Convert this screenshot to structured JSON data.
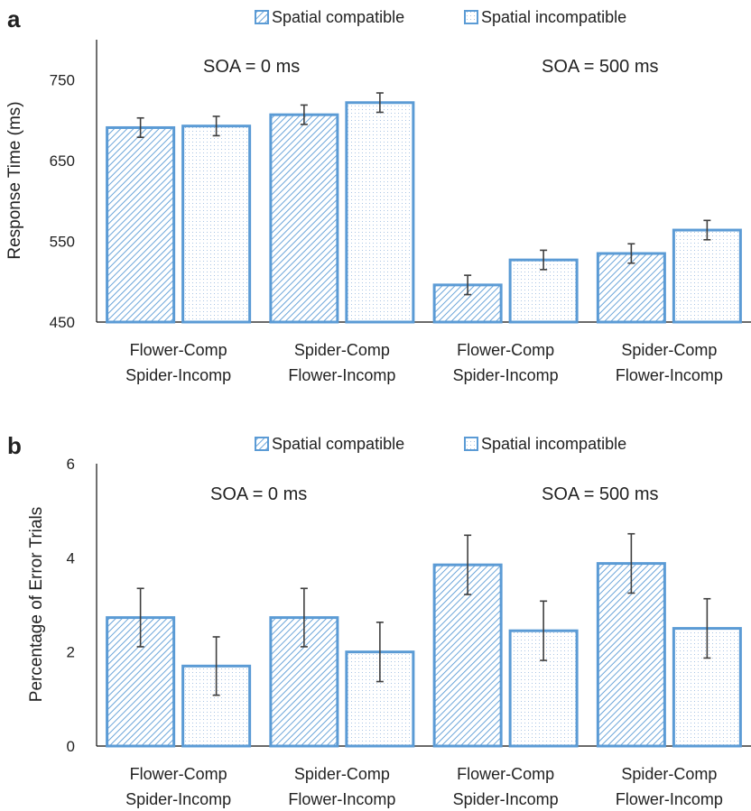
{
  "colors": {
    "bar_edge": "#5b9bd5",
    "hatch_line": "#5b9bd5",
    "dot": "#a9c4e4",
    "text": "#222222",
    "axis": "#111111",
    "error": "#3f3f3f",
    "background": "#ffffff"
  },
  "chart_data": [
    {
      "type": "bar",
      "panel_label": "a",
      "ylabel": "Response Time (ms)",
      "ylim": [
        450,
        800
      ],
      "yticks": [
        450,
        550,
        650,
        750
      ],
      "grid": false,
      "legend_position": "top",
      "annotations": [
        "SOA = 0 ms",
        "SOA = 500 ms"
      ],
      "categories": [
        [
          "Flower-Comp",
          "Spider-Incomp"
        ],
        [
          "Spider-Comp",
          "Flower-Incomp"
        ],
        [
          "Flower-Comp",
          "Spider-Incomp"
        ],
        [
          "Spider-Comp",
          "Flower-Incomp"
        ]
      ],
      "series": [
        {
          "name": "Spatial compatible",
          "pattern": "hatch",
          "values": [
            691,
            707,
            496,
            535
          ],
          "errors": [
            12,
            12,
            12,
            12
          ]
        },
        {
          "name": "Spatial incompatible",
          "pattern": "dots",
          "values": [
            693,
            722,
            527,
            564
          ],
          "errors": [
            12,
            12,
            12,
            12
          ]
        }
      ]
    },
    {
      "type": "bar",
      "panel_label": "b",
      "ylabel": "Percentage of Error Trials",
      "ylim": [
        0,
        6
      ],
      "yticks": [
        0,
        2,
        4,
        6
      ],
      "grid": false,
      "legend_position": "top",
      "annotations": [
        "SOA = 0 ms",
        "SOA = 500 ms"
      ],
      "categories": [
        [
          "Flower-Comp",
          "Spider-Incomp"
        ],
        [
          "Spider-Comp",
          "Flower-Incomp"
        ],
        [
          "Flower-Comp",
          "Spider-Incomp"
        ],
        [
          "Spider-Comp",
          "Flower-Incomp"
        ]
      ],
      "series": [
        {
          "name": "Spatial compatible",
          "pattern": "hatch",
          "values": [
            2.73,
            2.73,
            3.85,
            3.88
          ],
          "errors": [
            0.62,
            0.62,
            0.63,
            0.63
          ]
        },
        {
          "name": "Spatial incompatible",
          "pattern": "dots",
          "values": [
            1.7,
            2.0,
            2.45,
            2.5
          ],
          "errors": [
            0.62,
            0.63,
            0.63,
            0.63
          ]
        }
      ]
    }
  ]
}
